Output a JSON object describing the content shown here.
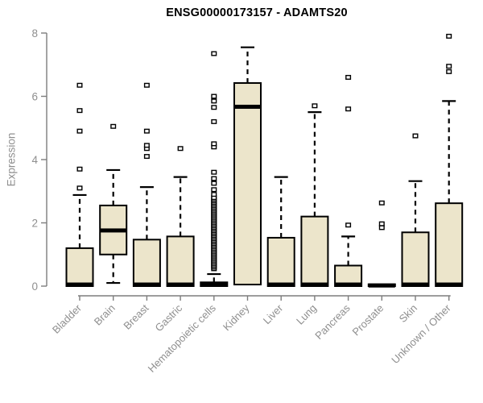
{
  "chart_data": {
    "type": "boxplot",
    "title": "ENSG00000173157 - ADAMTS20",
    "ylabel": "Expression",
    "xlabel": "",
    "ylim": [
      0,
      8
    ],
    "yticks": [
      0,
      2,
      4,
      6,
      8
    ],
    "grid": false,
    "legend": null,
    "colors": {
      "box_fill": "#ece5cb",
      "box_border": "#000000",
      "median": "#000000",
      "whisker": "#000000",
      "outlier_stroke": "#000000",
      "outlier_fill": "#ffffff",
      "axis": "#7d7d7d",
      "tick_label": "#8f8f8f",
      "title": "#000000"
    },
    "categories": [
      "Bladder",
      "Brain",
      "Breast",
      "Gastric",
      "Hematopoietic cells",
      "Kidney",
      "Liver",
      "Lung",
      "Pancreas",
      "Prostate",
      "Skin",
      "Unknown / Other"
    ],
    "boxes": [
      {
        "category": "Bladder",
        "q1": 0,
        "median": 0.05,
        "q3": 1.2,
        "whisker_low": 0,
        "whisker_high": 2.88,
        "outliers": [
          3.1,
          3.7,
          4.9,
          5.55,
          6.35
        ]
      },
      {
        "category": "Brain",
        "q1": 1.0,
        "median": 1.76,
        "q3": 2.55,
        "whisker_low": 0.1,
        "whisker_high": 3.67,
        "outliers": [
          5.05
        ]
      },
      {
        "category": "Breast",
        "q1": 0,
        "median": 0.05,
        "q3": 1.47,
        "whisker_low": 0,
        "whisker_high": 3.13,
        "outliers": [
          4.1,
          4.35,
          4.45,
          4.9,
          6.35
        ]
      },
      {
        "category": "Gastric",
        "q1": 0,
        "median": 0.05,
        "q3": 1.57,
        "whisker_low": 0,
        "whisker_high": 3.45,
        "outliers": [
          4.35
        ]
      },
      {
        "category": "Hematopoietic cells",
        "q1": 0,
        "median": 0.04,
        "q3": 0.12,
        "whisker_low": 0,
        "whisker_high": 0.38,
        "outliers": [
          0.55,
          0.6,
          0.65,
          0.7,
          0.75,
          0.8,
          0.85,
          0.9,
          0.95,
          1.0,
          1.05,
          1.1,
          1.15,
          1.2,
          1.25,
          1.3,
          1.35,
          1.4,
          1.45,
          1.5,
          1.55,
          1.6,
          1.65,
          1.7,
          1.75,
          1.8,
          1.85,
          1.9,
          1.95,
          2.0,
          2.05,
          2.1,
          2.15,
          2.2,
          2.25,
          2.3,
          2.35,
          2.4,
          2.45,
          2.5,
          2.55,
          2.6,
          2.65,
          2.7,
          2.75,
          2.8,
          2.9,
          3.05,
          3.25,
          3.4,
          3.6,
          4.4,
          4.5,
          5.2,
          5.65,
          5.85,
          6.0,
          7.35
        ]
      },
      {
        "category": "Kidney",
        "q1": 0.05,
        "median": 5.67,
        "q3": 6.42,
        "whisker_low": 0.05,
        "whisker_high": 7.55,
        "outliers": []
      },
      {
        "category": "Liver",
        "q1": 0,
        "median": 0.05,
        "q3": 1.53,
        "whisker_low": 0,
        "whisker_high": 3.45,
        "outliers": []
      },
      {
        "category": "Lung",
        "q1": 0,
        "median": 0.05,
        "q3": 2.2,
        "whisker_low": 0,
        "whisker_high": 5.5,
        "outliers": [
          5.7
        ]
      },
      {
        "category": "Pancreas",
        "q1": 0,
        "median": 0.05,
        "q3": 0.65,
        "whisker_low": 0,
        "whisker_high": 1.57,
        "outliers": [
          1.93,
          5.6,
          6.6
        ]
      },
      {
        "category": "Prostate",
        "q1": 0,
        "median": 0.02,
        "q3": 0.06,
        "whisker_low": 0,
        "whisker_high": 0.06,
        "outliers": [
          1.85,
          1.97,
          2.63
        ]
      },
      {
        "category": "Skin",
        "q1": 0,
        "median": 0.05,
        "q3": 1.7,
        "whisker_low": 0,
        "whisker_high": 3.32,
        "outliers": [
          4.75
        ]
      },
      {
        "category": "Unknown / Other",
        "q1": 0,
        "median": 0.05,
        "q3": 2.62,
        "whisker_low": 0,
        "whisker_high": 5.85,
        "outliers": [
          6.78,
          6.95,
          7.9
        ]
      }
    ]
  }
}
